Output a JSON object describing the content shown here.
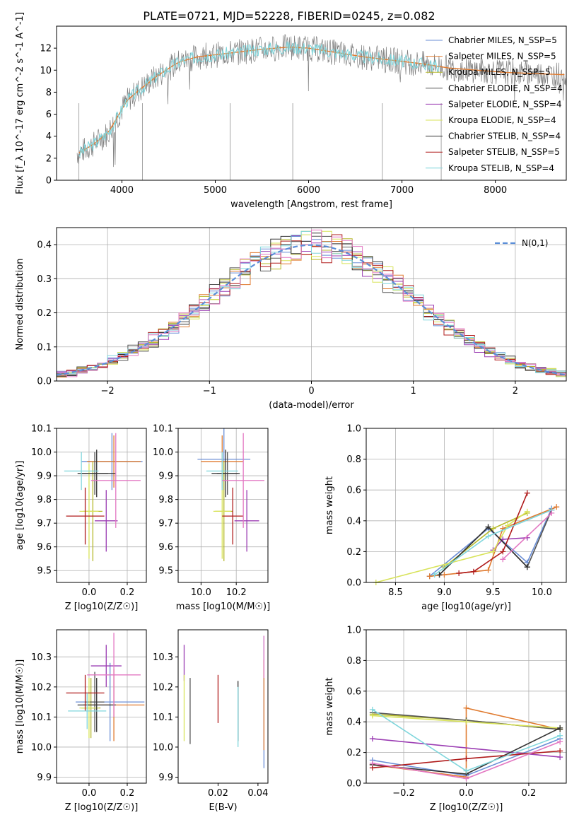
{
  "chart_data": [
    {
      "type": "line",
      "title": "PLATE=0721, MJD=52228, FIBERID=0245, z=0.082",
      "xlabel": "wavelength [Angstrom, rest frame]",
      "ylabel": "Flux [f_λ 10^-17 erg cm^-2 s^-1 A^-1]",
      "xlim": [
        3300,
        8760
      ],
      "ylim": [
        0,
        14
      ],
      "xticks": [
        4000,
        5000,
        6000,
        7000,
        8000
      ],
      "yticks": [
        0,
        2,
        4,
        6,
        8,
        10,
        12
      ],
      "grid": false,
      "legend": "right",
      "series": [
        {
          "name": "Chabrier MILES, N_SSP=5",
          "color": "#6a8ed6"
        },
        {
          "name": "Salpeter MILES, N_SSP=5",
          "color": "#e07b30"
        },
        {
          "name": "Kroupa MILES, N_SSP=5",
          "color": "#b5b92b"
        },
        {
          "name": "Chabrier ELODIE, N_SSP=4",
          "color": "#555555"
        },
        {
          "name": "Salpeter ELODIE, N_SSP=4",
          "color": "#9b3db3"
        },
        {
          "name": "Kroupa ELODIE, N_SSP=4",
          "color": "#d8e35a"
        },
        {
          "name": "Chabrier STELIB, N_SSP=4",
          "color": "#333333"
        },
        {
          "name": "Salpeter STELIB, N_SSP=5",
          "color": "#b01c1c"
        },
        {
          "name": "Kroupa STELIB, N_SSP=4",
          "color": "#7fd6dc"
        }
      ],
      "continuum": {
        "x": [
          3550,
          3700,
          3850,
          3950,
          4050,
          4200,
          4400,
          4600,
          4800,
          5000,
          5200,
          5500,
          5800,
          6000,
          6300,
          6600,
          6900,
          7200,
          7500,
          7800,
          8100,
          8400,
          8700
        ],
        "y": [
          2.5,
          3.3,
          4.3,
          5.7,
          7.2,
          8.3,
          9.6,
          10.7,
          11.2,
          11.4,
          11.6,
          11.9,
          12.1,
          12.0,
          11.6,
          11.2,
          10.9,
          10.6,
          10.2,
          10.0,
          9.8,
          9.7,
          9.6
        ]
      }
    },
    {
      "type": "line",
      "xlabel": "(data-model)/error",
      "ylabel": "Normed distribution",
      "xlim": [
        -2.5,
        2.5
      ],
      "ylim": [
        0,
        0.45
      ],
      "xticks": [
        -2,
        -1,
        0,
        1,
        2
      ],
      "yticks": [
        0.0,
        0.1,
        0.2,
        0.3,
        0.4
      ],
      "grid": true,
      "legend": "top-right",
      "reference_curve": {
        "name": "N(0,1)",
        "style": "dashed",
        "color": "#5b8ed8"
      }
    },
    {
      "type": "scatter",
      "xlabel": "Z [log10(Z/Z☉)]",
      "ylabel": "age [log10(age/yr)]",
      "xlim": [
        -0.17,
        0.3
      ],
      "ylim": [
        9.45,
        10.1
      ],
      "xticks": [
        0.0,
        0.2
      ],
      "yticks": [
        9.5,
        9.6,
        9.7,
        9.8,
        9.9,
        10.0,
        10.1
      ],
      "grid": true,
      "points": [
        {
          "x": 0.12,
          "y": 9.96,
          "ex": 0.16,
          "ey": 0.12,
          "color": "#6a8ed6"
        },
        {
          "x": 0.13,
          "y": 9.96,
          "ex": 0.14,
          "ey": 0.11,
          "color": "#e07b30"
        },
        {
          "x": 0.02,
          "y": 9.75,
          "ex": 0.05,
          "ey": 0.21,
          "color": "#b5b92b"
        },
        {
          "x": 0.03,
          "y": 9.91,
          "ex": 0.07,
          "ey": 0.09,
          "color": "#555555"
        },
        {
          "x": 0.09,
          "y": 9.71,
          "ex": 0.06,
          "ey": 0.13,
          "color": "#9b3db3"
        },
        {
          "x": 0.0,
          "y": 9.75,
          "ex": 0.05,
          "ey": 0.2,
          "color": "#d8e35a"
        },
        {
          "x": 0.04,
          "y": 9.91,
          "ex": 0.1,
          "ey": 0.1,
          "color": "#333333"
        },
        {
          "x": -0.02,
          "y": 9.73,
          "ex": 0.1,
          "ey": 0.12,
          "color": "#b01c1c"
        },
        {
          "x": -0.04,
          "y": 9.92,
          "ex": 0.09,
          "ey": 0.08,
          "color": "#7fd6dc"
        },
        {
          "x": 0.14,
          "y": 9.88,
          "ex": 0.13,
          "ey": 0.2,
          "color": "#e377c2"
        }
      ]
    },
    {
      "type": "scatter",
      "xlabel": "mass [log10(M/M☉)]",
      "ylabel": "",
      "xlim": [
        9.87,
        10.38
      ],
      "ylim": [
        9.45,
        10.1
      ],
      "xticks": [
        10.0,
        10.2
      ],
      "yticks": [
        9.5,
        9.6,
        9.7,
        9.8,
        9.9,
        10.0,
        10.1
      ],
      "grid": true,
      "points": [
        {
          "x": 10.13,
          "y": 9.97,
          "ex": 0.15,
          "ey": 0.13,
          "color": "#6a8ed6"
        },
        {
          "x": 10.12,
          "y": 9.96,
          "ex": 0.12,
          "ey": 0.11,
          "color": "#e07b30"
        },
        {
          "x": 10.13,
          "y": 9.75,
          "ex": 0.05,
          "ey": 0.21,
          "color": "#b5b92b"
        },
        {
          "x": 10.15,
          "y": 9.91,
          "ex": 0.06,
          "ey": 0.09,
          "color": "#555555"
        },
        {
          "x": 10.26,
          "y": 9.71,
          "ex": 0.07,
          "ey": 0.13,
          "color": "#9b3db3"
        },
        {
          "x": 10.12,
          "y": 9.75,
          "ex": 0.05,
          "ey": 0.2,
          "color": "#d8e35a"
        },
        {
          "x": 10.14,
          "y": 9.91,
          "ex": 0.08,
          "ey": 0.1,
          "color": "#333333"
        },
        {
          "x": 10.18,
          "y": 9.73,
          "ex": 0.06,
          "ey": 0.12,
          "color": "#b01c1c"
        },
        {
          "x": 10.12,
          "y": 9.92,
          "ex": 0.09,
          "ey": 0.08,
          "color": "#7fd6dc"
        },
        {
          "x": 10.24,
          "y": 9.88,
          "ex": 0.12,
          "ey": 0.2,
          "color": "#e377c2"
        }
      ]
    },
    {
      "type": "line",
      "xlabel": "age [log10(age/yr)]",
      "ylabel": "mass weight",
      "xlim": [
        8.2,
        10.25
      ],
      "ylim": [
        0,
        1
      ],
      "xticks": [
        8.5,
        9.0,
        9.5,
        10.0
      ],
      "yticks": [
        0.0,
        0.2,
        0.4,
        0.6,
        0.8,
        1.0
      ],
      "grid": true,
      "series": [
        {
          "color": "#6a8ed6",
          "x": [
            8.85,
            9.45,
            9.85,
            10.1
          ],
          "y": [
            0.04,
            0.35,
            0.13,
            0.48
          ]
        },
        {
          "color": "#e07b30",
          "x": [
            8.85,
            9.0,
            9.45,
            9.6,
            10.15
          ],
          "y": [
            0.04,
            0.05,
            0.08,
            0.35,
            0.49
          ]
        },
        {
          "color": "#b5b92b",
          "x": [
            9.0,
            9.5,
            9.85
          ],
          "y": [
            0.1,
            0.35,
            0.45
          ]
        },
        {
          "color": "#555555",
          "x": [
            8.95,
            9.45,
            9.85,
            10.1
          ],
          "y": [
            0.05,
            0.36,
            0.1,
            0.47
          ]
        },
        {
          "color": "#9b3db3",
          "x": [
            9.5,
            9.6,
            9.85
          ],
          "y": [
            0.21,
            0.28,
            0.29
          ]
        },
        {
          "color": "#d8e35a",
          "x": [
            8.3,
            9.5,
            9.65,
            9.85
          ],
          "y": [
            0.0,
            0.2,
            0.37,
            0.46
          ]
        },
        {
          "color": "#333333",
          "x": [
            8.95,
            9.45,
            9.85
          ],
          "y": [
            0.05,
            0.36,
            0.1
          ]
        },
        {
          "color": "#b01c1c",
          "x": [
            9.15,
            9.3,
            9.6,
            9.85
          ],
          "y": [
            0.06,
            0.07,
            0.2,
            0.58
          ]
        },
        {
          "color": "#7fd6dc",
          "x": [
            8.9,
            9.45,
            10.1
          ],
          "y": [
            0.05,
            0.3,
            0.47
          ]
        },
        {
          "color": "#e377c2",
          "x": [
            9.6,
            10.1
          ],
          "y": [
            0.15,
            0.45
          ]
        }
      ]
    },
    {
      "type": "scatter",
      "xlabel": "Z [log10(Z/Z☉)]",
      "ylabel": "mass [log10(M/M☉)]",
      "xlim": [
        -0.17,
        0.3
      ],
      "ylim": [
        9.88,
        10.39
      ],
      "xticks": [
        0.0,
        0.2
      ],
      "yticks": [
        9.9,
        10.0,
        10.1,
        10.2,
        10.3
      ],
      "grid": true,
      "points": [
        {
          "x": 0.11,
          "y": 10.15,
          "ex": 0.18,
          "ey": 0.13,
          "color": "#6a8ed6"
        },
        {
          "x": 0.13,
          "y": 10.14,
          "ex": 0.16,
          "ey": 0.12,
          "color": "#e07b30"
        },
        {
          "x": 0.01,
          "y": 10.13,
          "ex": 0.05,
          "ey": 0.1,
          "color": "#b5b92b"
        },
        {
          "x": 0.03,
          "y": 10.15,
          "ex": 0.05,
          "ey": 0.1,
          "color": "#555555"
        },
        {
          "x": 0.09,
          "y": 10.27,
          "ex": 0.08,
          "ey": 0.07,
          "color": "#9b3db3"
        },
        {
          "x": 0.0,
          "y": 10.13,
          "ex": 0.05,
          "ey": 0.1,
          "color": "#d8e35a"
        },
        {
          "x": 0.04,
          "y": 10.14,
          "ex": 0.1,
          "ey": 0.09,
          "color": "#333333"
        },
        {
          "x": -0.02,
          "y": 10.18,
          "ex": 0.1,
          "ey": 0.06,
          "color": "#b01c1c"
        },
        {
          "x": -0.01,
          "y": 10.12,
          "ex": 0.1,
          "ey": 0.06,
          "color": "#7fd6dc"
        },
        {
          "x": 0.13,
          "y": 10.24,
          "ex": 0.14,
          "ey": 0.14,
          "color": "#e377c2"
        }
      ]
    },
    {
      "type": "scatter",
      "xlabel": "E(B-V)",
      "ylabel": "",
      "xlim": [
        0.0,
        0.045
      ],
      "ylim": [
        9.88,
        10.39
      ],
      "xticks": [
        0.02,
        0.04
      ],
      "yticks": [
        9.9,
        10.0,
        10.1,
        10.2,
        10.3
      ],
      "grid": false,
      "points": [
        {
          "x": 0.043,
          "y": 10.15,
          "ey": 0.22,
          "color": "#6a8ed6"
        },
        {
          "x": 0.043,
          "y": 10.14,
          "ey": 0.15,
          "color": "#e07b30"
        },
        {
          "x": 0.003,
          "y": 10.28,
          "ey": 0.06,
          "color": "#9b3db3"
        },
        {
          "x": 0.003,
          "y": 10.13,
          "ey": 0.11,
          "color": "#d8e35a"
        },
        {
          "x": 0.006,
          "y": 10.12,
          "ey": 0.11,
          "color": "#555555"
        },
        {
          "x": 0.02,
          "y": 10.16,
          "ey": 0.08,
          "color": "#b01c1c"
        },
        {
          "x": 0.03,
          "y": 10.12,
          "ey": 0.1,
          "color": "#333333"
        },
        {
          "x": 0.03,
          "y": 10.1,
          "ey": 0.1,
          "color": "#7fd6dc"
        },
        {
          "x": 0.043,
          "y": 10.3,
          "ey": 0.07,
          "color": "#e377c2"
        }
      ]
    },
    {
      "type": "line",
      "xlabel": "Z [log10(Z/Z☉)]",
      "ylabel": "mass weight",
      "xlim": [
        -0.32,
        0.32
      ],
      "ylim": [
        0,
        1
      ],
      "xticks": [
        -0.2,
        0.0,
        0.2
      ],
      "yticks": [
        0.0,
        0.2,
        0.4,
        0.6,
        0.8,
        1.0
      ],
      "grid": true,
      "series": [
        {
          "color": "#6a8ed6",
          "x": [
            -0.3,
            0.0,
            0.3
          ],
          "y": [
            0.15,
            0.05,
            0.29
          ]
        },
        {
          "color": "#e07b30",
          "x": [
            -0.3,
            0.0,
            0.0,
            0.3
          ],
          "y": [
            0.12,
            0.04,
            0.49,
            0.35
          ]
        },
        {
          "color": "#b5b92b",
          "x": [
            -0.3,
            0.0,
            0.3
          ],
          "y": [
            0.45,
            0.41,
            0.35
          ]
        },
        {
          "color": "#555555",
          "x": [
            -0.3,
            0.0,
            0.3
          ],
          "y": [
            0.46,
            0.41,
            0.35
          ]
        },
        {
          "color": "#9b3db3",
          "x": [
            -0.3,
            0.3
          ],
          "y": [
            0.29,
            0.17
          ]
        },
        {
          "color": "#d8e35a",
          "x": [
            -0.3,
            0.0,
            0.3
          ],
          "y": [
            0.44,
            0.4,
            0.36
          ]
        },
        {
          "color": "#333333",
          "x": [
            -0.3,
            0.0,
            0.3
          ],
          "y": [
            0.12,
            0.06,
            0.36
          ]
        },
        {
          "color": "#b01c1c",
          "x": [
            -0.3,
            0.0,
            0.3
          ],
          "y": [
            0.1,
            0.16,
            0.21
          ]
        },
        {
          "color": "#7fd6dc",
          "x": [
            -0.3,
            0.0,
            0.3
          ],
          "y": [
            0.48,
            0.08,
            0.31
          ]
        },
        {
          "color": "#e377c2",
          "x": [
            -0.3,
            0.0,
            0.3
          ],
          "y": [
            0.13,
            0.03,
            0.27
          ]
        }
      ]
    }
  ]
}
